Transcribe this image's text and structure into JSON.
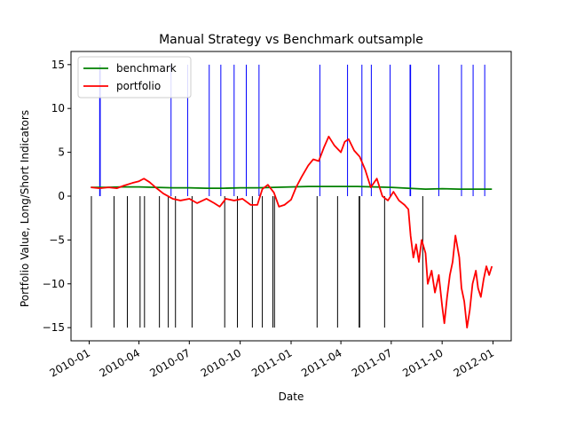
{
  "chart_data": {
    "type": "line",
    "title": "Manual Strategy vs Benchmark outsample",
    "xlabel": "Date",
    "ylabel": "Portfolio Value, Long/Short Indicators",
    "xlim": [
      "2010-01-01",
      "2012-01-01"
    ],
    "ylim": [
      -16.5,
      16.5
    ],
    "x_ticks": [
      "2010-01-01",
      "2010-04-01",
      "2010-07-01",
      "2010-10-01",
      "2011-01-01",
      "2011-04-01",
      "2011-07-01",
      "2011-10-01",
      "2012-01-01"
    ],
    "x_tick_labels": [
      "2010-01",
      "2010-04",
      "2010-07",
      "2010-10",
      "2011-01",
      "2011-04",
      "2011-07",
      "2011-10",
      "2012-01"
    ],
    "y_ticks": [
      -15,
      -10,
      -5,
      0,
      5,
      10,
      15
    ],
    "y_tick_labels": [
      "−15",
      "−10",
      "−5",
      "0",
      "5",
      "10",
      "15"
    ],
    "grid": false,
    "legend_position": "top-left",
    "series": [
      {
        "name": "benchmark",
        "color": "#008000",
        "x": [
          "2010-01-04",
          "2010-02-01",
          "2010-03-01",
          "2010-04-01",
          "2010-05-01",
          "2010-06-01",
          "2010-07-01",
          "2010-08-01",
          "2010-09-01",
          "2010-10-01",
          "2010-11-01",
          "2010-12-01",
          "2011-01-01",
          "2011-02-01",
          "2011-03-01",
          "2011-04-01",
          "2011-05-01",
          "2011-06-01",
          "2011-07-01",
          "2011-08-01",
          "2011-09-01",
          "2011-10-01",
          "2011-11-01",
          "2011-12-30"
        ],
        "y": [
          1.0,
          1.0,
          1.05,
          1.05,
          1.0,
          0.95,
          0.95,
          0.9,
          0.9,
          0.95,
          0.95,
          1.0,
          1.05,
          1.1,
          1.1,
          1.1,
          1.1,
          1.05,
          1.0,
          0.9,
          0.8,
          0.85,
          0.8,
          0.8
        ]
      },
      {
        "name": "portfolio",
        "color": "#ff0000",
        "x": [
          "2010-01-04",
          "2010-01-20",
          "2010-02-05",
          "2010-02-20",
          "2010-03-05",
          "2010-03-20",
          "2010-04-01",
          "2010-04-10",
          "2010-04-20",
          "2010-05-01",
          "2010-05-15",
          "2010-06-01",
          "2010-06-15",
          "2010-07-01",
          "2010-07-15",
          "2010-08-01",
          "2010-08-15",
          "2010-08-25",
          "2010-09-05",
          "2010-09-20",
          "2010-10-05",
          "2010-10-20",
          "2010-11-01",
          "2010-11-10",
          "2010-11-20",
          "2010-12-01",
          "2010-12-10",
          "2010-12-20",
          "2011-01-01",
          "2011-01-10",
          "2011-01-20",
          "2011-02-01",
          "2011-02-10",
          "2011-02-20",
          "2011-03-01",
          "2011-03-10",
          "2011-03-20",
          "2011-04-01",
          "2011-04-08",
          "2011-04-15",
          "2011-04-25",
          "2011-05-05",
          "2011-05-15",
          "2011-05-25",
          "2011-06-05",
          "2011-06-15",
          "2011-06-25",
          "2011-07-05",
          "2011-07-15",
          "2011-07-25",
          "2011-08-01",
          "2011-08-05",
          "2011-08-10",
          "2011-08-15",
          "2011-08-20",
          "2011-08-25",
          "2011-09-01",
          "2011-09-05",
          "2011-09-12",
          "2011-09-18",
          "2011-09-25",
          "2011-10-01",
          "2011-10-05",
          "2011-10-10",
          "2011-10-15",
          "2011-10-20",
          "2011-10-25",
          "2011-11-01",
          "2011-11-05",
          "2011-11-10",
          "2011-11-15",
          "2011-11-20",
          "2011-11-25",
          "2011-12-01",
          "2011-12-05",
          "2011-12-10",
          "2011-12-15",
          "2011-12-20",
          "2011-12-25",
          "2011-12-30"
        ],
        "y": [
          1.0,
          0.9,
          1.0,
          0.9,
          1.2,
          1.5,
          1.7,
          2.0,
          1.6,
          1.0,
          0.3,
          -0.3,
          -0.5,
          -0.3,
          -0.8,
          -0.3,
          -0.8,
          -1.2,
          -0.3,
          -0.5,
          -0.3,
          -1.0,
          -1.0,
          0.8,
          1.3,
          0.4,
          -1.2,
          -1.0,
          -0.4,
          1.0,
          2.2,
          3.5,
          4.2,
          4.0,
          5.5,
          6.8,
          5.8,
          5.0,
          6.2,
          6.5,
          5.2,
          4.5,
          3.0,
          1.0,
          2.0,
          0.0,
          -0.5,
          0.5,
          -0.5,
          -1.0,
          -1.5,
          -4.5,
          -7.0,
          -5.5,
          -7.5,
          -5.0,
          -6.5,
          -10.0,
          -8.5,
          -11.0,
          -9.0,
          -12.5,
          -14.5,
          -11.5,
          -9.0,
          -7.5,
          -4.5,
          -7.0,
          -10.5,
          -12.0,
          -15.0,
          -13.0,
          -10.0,
          -8.5,
          -10.5,
          -11.5,
          -9.5,
          -8.0,
          -9.0,
          -8.0
        ]
      }
    ],
    "long_indicators": {
      "color": "#0000ff",
      "y_range": [
        0,
        15
      ],
      "dates": [
        "2010-01-20",
        "2010-01-21",
        "2010-05-29",
        "2010-06-28",
        "2010-08-06",
        "2010-08-27",
        "2010-09-20",
        "2010-10-12",
        "2010-11-04",
        "2011-02-22",
        "2011-04-13",
        "2011-05-09",
        "2011-05-26",
        "2011-06-29",
        "2011-08-04",
        "2011-08-05",
        "2011-09-25",
        "2011-11-05",
        "2011-11-26",
        "2011-12-17"
      ]
    },
    "short_indicators": {
      "color": "#000000",
      "y_range": [
        -15,
        0
      ],
      "dates": [
        "2010-01-05",
        "2010-02-15",
        "2010-03-11",
        "2010-04-03",
        "2010-04-11",
        "2010-05-08",
        "2010-05-24",
        "2010-06-06",
        "2010-07-06",
        "2010-09-03",
        "2010-09-26",
        "2010-10-23",
        "2010-11-10",
        "2010-11-29",
        "2010-12-02",
        "2011-02-17",
        "2011-03-26",
        "2011-05-04",
        "2011-05-05",
        "2011-06-19",
        "2011-08-27"
      ]
    }
  }
}
